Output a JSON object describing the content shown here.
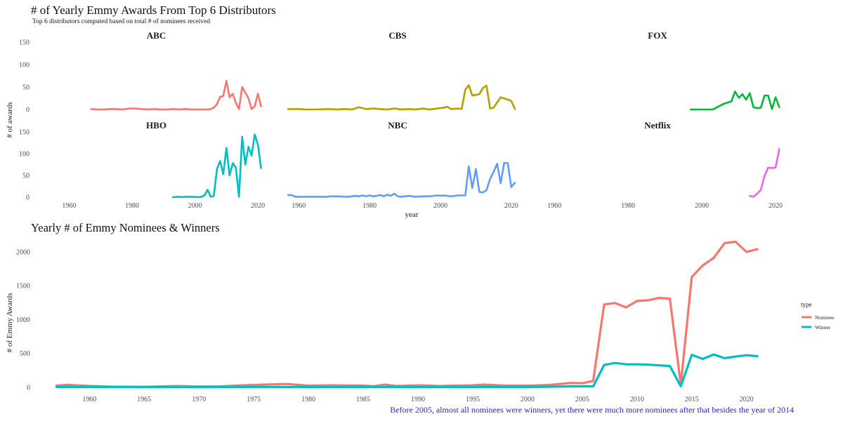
{
  "header": {
    "title": "# of Yearly Emmy Awards From Top 6 Distributors",
    "subtitle": "Top 6 distributors computed based on total # of nominees received"
  },
  "bottom": {
    "title": "Yearly # of Emmy Nominees & Winners",
    "annotation": "Before 2005, almost all nominees were winners, yet there were much more nominees after that besides the year of 2014"
  },
  "chart_data": [
    {
      "type": "line",
      "facet": true,
      "xlabel": "year",
      "ylabel": "# of awards",
      "xlim": [
        1955,
        2024
      ],
      "ylim": [
        -5,
        150
      ],
      "x_ticks": [
        1960,
        1980,
        2000,
        2020
      ],
      "y_ticks": [
        0,
        50,
        100,
        150
      ],
      "grid": false,
      "panels": [
        {
          "name": "ABC",
          "color": "#F8766D",
          "x": [
            1967,
            1969,
            1971,
            1973,
            1975,
            1977,
            1979,
            1981,
            1983,
            1985,
            1987,
            1989,
            1991,
            1993,
            1995,
            1997,
            1999,
            2001,
            2003,
            2004,
            2005,
            2006,
            2007,
            2008,
            2009,
            2010,
            2011,
            2012,
            2013,
            2014,
            2015,
            2017,
            2018,
            2019,
            2020,
            2021
          ],
          "y": [
            1,
            0,
            0,
            1,
            1,
            0,
            2,
            2,
            1,
            0,
            1,
            0,
            0,
            1,
            0,
            1,
            0,
            0,
            0,
            0,
            1,
            4,
            12,
            28,
            30,
            64,
            27,
            35,
            15,
            1,
            50,
            25,
            1,
            7,
            35,
            7
          ]
        },
        {
          "name": "CBS",
          "color": "#B79F00",
          "x": [
            1957,
            1960,
            1962,
            1965,
            1968,
            1971,
            1973,
            1975,
            1977,
            1979,
            1981,
            1983,
            1985,
            1987,
            1989,
            1991,
            1993,
            1995,
            1997,
            1999,
            2001,
            2002,
            2003,
            2005,
            2006,
            2007,
            2008,
            2009,
            2011,
            2012,
            2013,
            2014,
            2015,
            2017,
            2019,
            2020,
            2021
          ],
          "y": [
            1,
            1,
            0,
            0,
            1,
            0,
            1,
            0,
            5,
            1,
            2,
            1,
            0,
            2,
            0,
            1,
            0,
            2,
            0,
            2,
            4,
            6,
            1,
            2,
            1,
            44,
            54,
            31,
            34,
            48,
            53,
            2,
            4,
            27,
            22,
            19,
            1
          ]
        },
        {
          "name": "FOX",
          "color": "#00BA38",
          "x": [
            1997,
            2000,
            2003,
            2006,
            2008,
            2009,
            2010,
            2011,
            2012,
            2013,
            2014,
            2015,
            2016,
            2017,
            2018,
            2019,
            2020,
            2021
          ],
          "y": [
            0,
            0,
            0,
            13,
            18,
            40,
            26,
            34,
            22,
            36,
            5,
            3,
            4,
            31,
            31,
            1,
            27,
            5
          ]
        },
        {
          "name": "HBO",
          "color": "#00BFC4",
          "x": [
            1993,
            1995,
            1996,
            1997,
            1999,
            2001,
            2002,
            2003,
            2004,
            2005,
            2006,
            2007,
            2008,
            2009,
            2010,
            2011,
            2012,
            2013,
            2014,
            2015,
            2016,
            2017,
            2018,
            2019,
            2020,
            2021
          ],
          "y": [
            0,
            1,
            0,
            1,
            1,
            0,
            1,
            4,
            17,
            1,
            3,
            65,
            83,
            53,
            113,
            50,
            78,
            68,
            1,
            139,
            75,
            116,
            96,
            144,
            121,
            67
          ]
        },
        {
          "name": "NBC",
          "color": "#619CFF",
          "x": [
            1957,
            1958,
            1959,
            1960,
            1962,
            1964,
            1966,
            1968,
            1969,
            1970,
            1971,
            1973,
            1974,
            1976,
            1977,
            1978,
            1979,
            1980,
            1981,
            1982,
            1983,
            1984,
            1985,
            1986,
            1987,
            1988,
            1989,
            1991,
            1993,
            1995,
            1996,
            1997,
            1999,
            2000,
            2001,
            2003,
            2005,
            2006,
            2007,
            2008,
            2009,
            2010,
            2011,
            2012,
            2013,
            2014,
            2015,
            2016,
            2017,
            2018,
            2019,
            2020,
            2021
          ],
          "y": [
            5,
            5,
            1,
            1,
            1,
            1,
            1,
            1,
            2,
            2,
            2,
            1,
            1,
            3,
            2,
            4,
            2,
            4,
            2,
            3,
            5,
            2,
            6,
            3,
            8,
            2,
            1,
            3,
            1,
            2,
            2,
            2,
            4,
            3,
            4,
            2,
            4,
            4,
            4,
            71,
            21,
            65,
            12,
            11,
            16,
            42,
            58,
            77,
            32,
            79,
            78,
            23,
            33
          ]
        },
        {
          "name": "Netflix",
          "color": "#F564E3",
          "x": [
            2013,
            2014,
            2015,
            2016,
            2017,
            2018,
            2019,
            2020,
            2021
          ],
          "y": [
            3,
            1,
            8,
            17,
            49,
            68,
            67,
            68,
            111
          ]
        }
      ]
    },
    {
      "type": "line",
      "title": "Yearly # of Emmy Nominees & Winners",
      "ylabel": "# of Emmy Awards",
      "xlim": [
        1956,
        2024
      ],
      "ylim": [
        0,
        2300
      ],
      "x_ticks": [
        1960,
        1965,
        1970,
        1975,
        1980,
        1985,
        1990,
        1995,
        2000,
        2005,
        2010,
        2015,
        2020
      ],
      "y_ticks": [
        0,
        500,
        1000,
        1500,
        2000
      ],
      "grid": false,
      "legend": {
        "title": "type",
        "position": "right"
      },
      "series": [
        {
          "name": "Nominee",
          "color": "#F8766D",
          "x": [
            1957,
            1958,
            1959,
            1960,
            1962,
            1965,
            1968,
            1970,
            1972,
            1974,
            1976,
            1978,
            1980,
            1982,
            1985,
            1986,
            1987,
            1988,
            1990,
            1992,
            1995,
            1996,
            1998,
            2000,
            2002,
            2004,
            2005,
            2006,
            2007,
            2008,
            2009,
            2010,
            2011,
            2012,
            2013,
            2014,
            2015,
            2016,
            2017,
            2018,
            2019,
            2020,
            2021
          ],
          "y": [
            25,
            38,
            28,
            20,
            10,
            8,
            20,
            12,
            15,
            30,
            40,
            50,
            25,
            30,
            25,
            18,
            40,
            20,
            30,
            20,
            30,
            40,
            25,
            25,
            35,
            65,
            60,
            95,
            1225,
            1245,
            1180,
            1275,
            1285,
            1320,
            1310,
            40,
            1630,
            1800,
            1910,
            2130,
            2150,
            2000,
            2040
          ]
        },
        {
          "name": "Winner",
          "color": "#00BFC4",
          "x": [
            1957,
            1960,
            1965,
            1970,
            1975,
            1980,
            1985,
            1990,
            1995,
            2000,
            2004,
            2005,
            2006,
            2007,
            2008,
            2009,
            2010,
            2011,
            2012,
            2013,
            2014,
            2015,
            2016,
            2017,
            2018,
            2019,
            2020,
            2021
          ],
          "y": [
            5,
            5,
            3,
            3,
            5,
            4,
            5,
            4,
            5,
            5,
            15,
            15,
            15,
            330,
            360,
            340,
            340,
            335,
            325,
            315,
            15,
            480,
            420,
            485,
            430,
            455,
            475,
            460
          ]
        }
      ]
    }
  ]
}
